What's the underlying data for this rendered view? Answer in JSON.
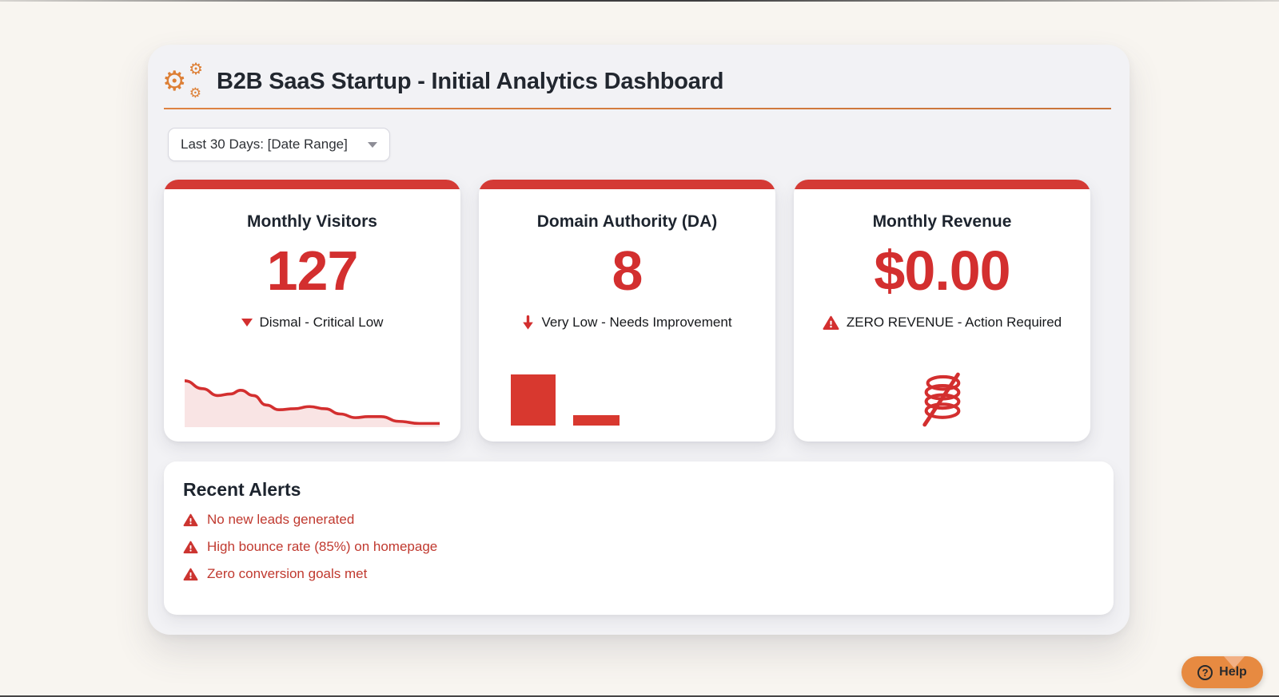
{
  "header": {
    "title": "B2B SaaS Startup - Initial Analytics Dashboard",
    "icon": "gears-icon"
  },
  "filters": {
    "date_range_label": "Last 30 Days: [Date Range]"
  },
  "cards": [
    {
      "title": "Monthly Visitors",
      "value": "127",
      "status": "Dismal - Critical Low",
      "status_icon": "triangle-down-icon",
      "visual": "declining-area-sparkline",
      "sparkline": {
        "points": [
          [
            0,
            12
          ],
          [
            7,
            27
          ],
          [
            13,
            40
          ],
          [
            18,
            37
          ],
          [
            22,
            30
          ],
          [
            27,
            40
          ],
          [
            32,
            58
          ],
          [
            37,
            67
          ],
          [
            43,
            65
          ],
          [
            49,
            61
          ],
          [
            55,
            65
          ],
          [
            61,
            75
          ],
          [
            67,
            82
          ],
          [
            72,
            80
          ],
          [
            77,
            80
          ],
          [
            84,
            89
          ],
          [
            92,
            93
          ],
          [
            100,
            93
          ]
        ]
      }
    },
    {
      "title": "Domain Authority (DA)",
      "value": "8",
      "status": "Very Low - Needs Improvement",
      "status_icon": "arrow-down-icon",
      "visual": "two-bar-mini-chart",
      "bars": [
        100,
        21
      ]
    },
    {
      "title": "Monthly Revenue",
      "value": "$0.00",
      "status": "ZERO REVENUE - Action Required",
      "status_icon": "warning-triangle-icon",
      "visual": "no-money-coins-icon"
    }
  ],
  "alerts": {
    "title": "Recent Alerts",
    "items": [
      {
        "text": "No new leads generated"
      },
      {
        "text": "High bounce rate (85%) on homepage"
      },
      {
        "text": "Zero conversion goals met"
      }
    ]
  },
  "help": {
    "label": "Help"
  },
  "colors": {
    "accent_red": "#d32f2f",
    "card_topbar_red": "#d43a35",
    "alert_text_red": "#c0392f",
    "accent_orange": "#dd7f35",
    "help_orange": "#e78a41",
    "spark_fill": "rgba(211,47,47,0.13)"
  }
}
